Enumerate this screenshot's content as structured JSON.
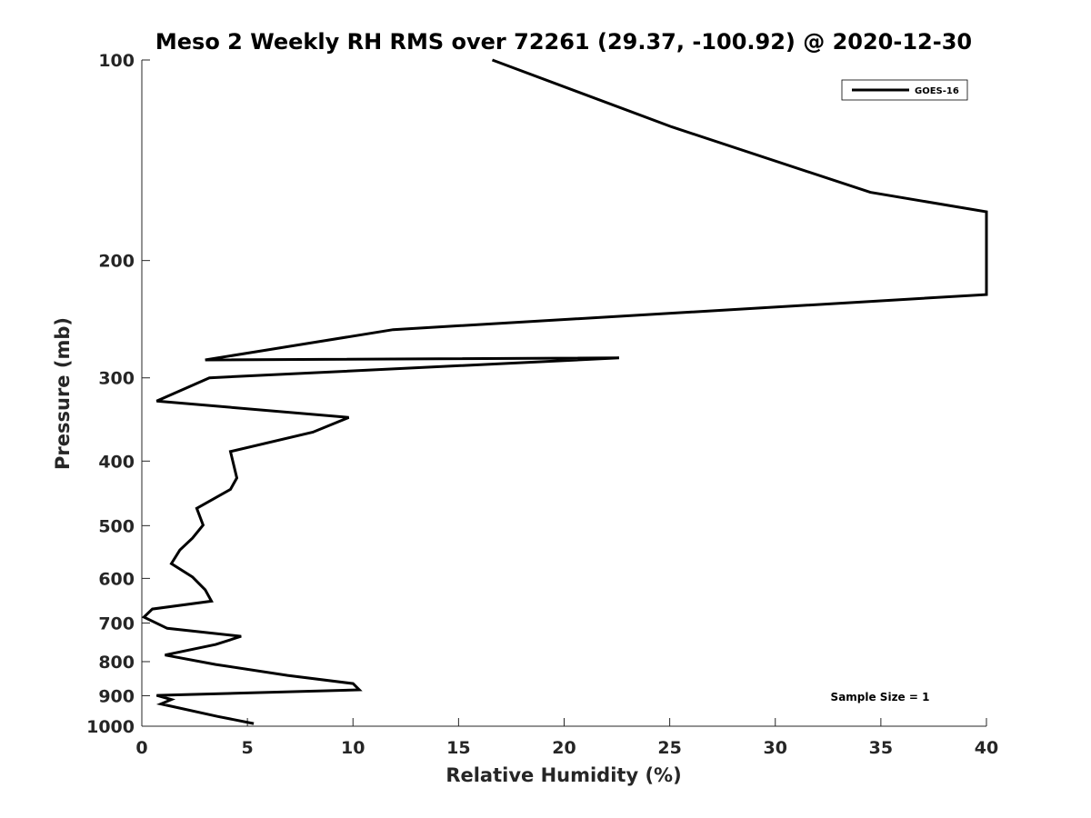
{
  "chart_data": {
    "type": "line",
    "title": "Meso 2 Weekly RH RMS over 72261 (29.37, -100.92) @ 2020-12-30",
    "xlabel": "Relative Humidity (%)",
    "ylabel": "Pressure (mb)",
    "xlim": [
      0,
      40
    ],
    "ylim": [
      100,
      1000
    ],
    "yscale": "log",
    "y_reversed": true,
    "xticks": [
      0,
      5,
      10,
      15,
      20,
      25,
      30,
      35,
      40
    ],
    "yticks": [
      100,
      200,
      300,
      400,
      500,
      600,
      700,
      800,
      900,
      1000
    ],
    "grid": false,
    "legend_position": "top-right",
    "series": [
      {
        "name": "GOES-16",
        "color": "#000000",
        "points": [
          {
            "x": 16.6,
            "y": 100
          },
          {
            "x": 25.1,
            "y": 126
          },
          {
            "x": 34.5,
            "y": 158
          },
          {
            "x": 40.0,
            "y": 169
          },
          {
            "x": 40.0,
            "y": 225
          },
          {
            "x": 11.9,
            "y": 254
          },
          {
            "x": 3.0,
            "y": 282
          },
          {
            "x": 22.6,
            "y": 280
          },
          {
            "x": 3.2,
            "y": 300
          },
          {
            "x": 0.7,
            "y": 325
          },
          {
            "x": 9.8,
            "y": 344
          },
          {
            "x": 8.1,
            "y": 362
          },
          {
            "x": 4.2,
            "y": 387
          },
          {
            "x": 4.5,
            "y": 424
          },
          {
            "x": 4.2,
            "y": 441
          },
          {
            "x": 2.6,
            "y": 471
          },
          {
            "x": 2.9,
            "y": 499
          },
          {
            "x": 2.4,
            "y": 522
          },
          {
            "x": 1.8,
            "y": 544
          },
          {
            "x": 1.4,
            "y": 570
          },
          {
            "x": 2.4,
            "y": 597
          },
          {
            "x": 3.0,
            "y": 624
          },
          {
            "x": 3.3,
            "y": 649
          },
          {
            "x": 0.5,
            "y": 667
          },
          {
            "x": 0.1,
            "y": 686
          },
          {
            "x": 1.2,
            "y": 713
          },
          {
            "x": 4.7,
            "y": 733
          },
          {
            "x": 3.5,
            "y": 754
          },
          {
            "x": 1.1,
            "y": 782
          },
          {
            "x": 3.5,
            "y": 808
          },
          {
            "x": 6.9,
            "y": 839
          },
          {
            "x": 10.0,
            "y": 863
          },
          {
            "x": 10.3,
            "y": 882
          },
          {
            "x": 0.7,
            "y": 899
          },
          {
            "x": 1.4,
            "y": 912
          },
          {
            "x": 0.9,
            "y": 926
          },
          {
            "x": 3.6,
            "y": 967
          },
          {
            "x": 5.3,
            "y": 991
          }
        ]
      }
    ],
    "legend": [
      "GOES-16"
    ],
    "annotations": [
      "Sample Size = 1"
    ]
  }
}
